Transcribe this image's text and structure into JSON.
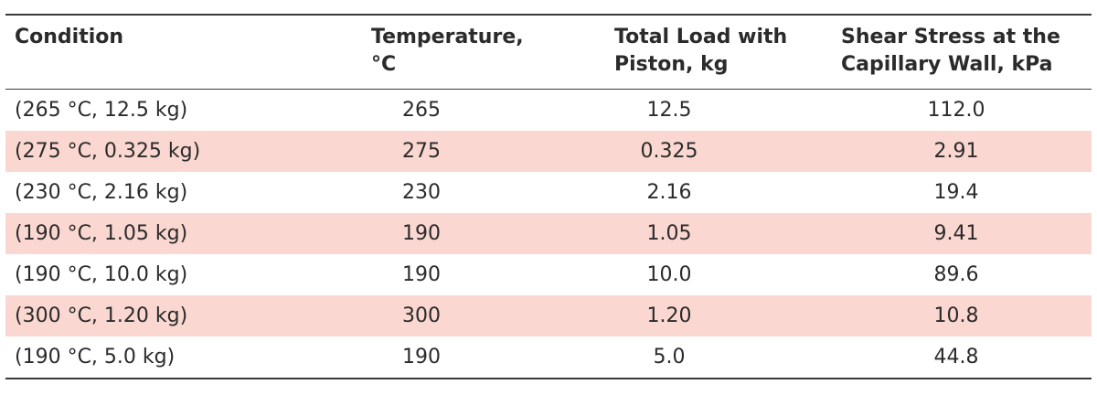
{
  "table": {
    "headers": [
      "Condition",
      "Temperature,\n°C",
      "Total Load with\nPiston, kg",
      "Shear Stress at the\nCapillary Wall, kPa"
    ],
    "rows": [
      [
        "(265 °C, 12.5 kg)",
        "265",
        "12.5",
        "112.0"
      ],
      [
        "(275 °C, 0.325 kg)",
        "275",
        "0.325",
        "2.91"
      ],
      [
        "(230 °C, 2.16 kg)",
        "230",
        "2.16",
        "19.4"
      ],
      [
        "(190 °C, 1.05 kg)",
        "190",
        "1.05",
        "9.41"
      ],
      [
        "(190 °C, 10.0 kg)",
        "190",
        "10.0",
        "89.6"
      ],
      [
        "(300 °C, 1.20 kg)",
        "300",
        "1.20",
        "10.8"
      ],
      [
        "(190 °C, 5.0 kg)",
        "190",
        "5.0",
        "44.8"
      ]
    ],
    "shaded_row_color": "#fad7d0",
    "shaded_rows": [
      1,
      3,
      5
    ]
  }
}
